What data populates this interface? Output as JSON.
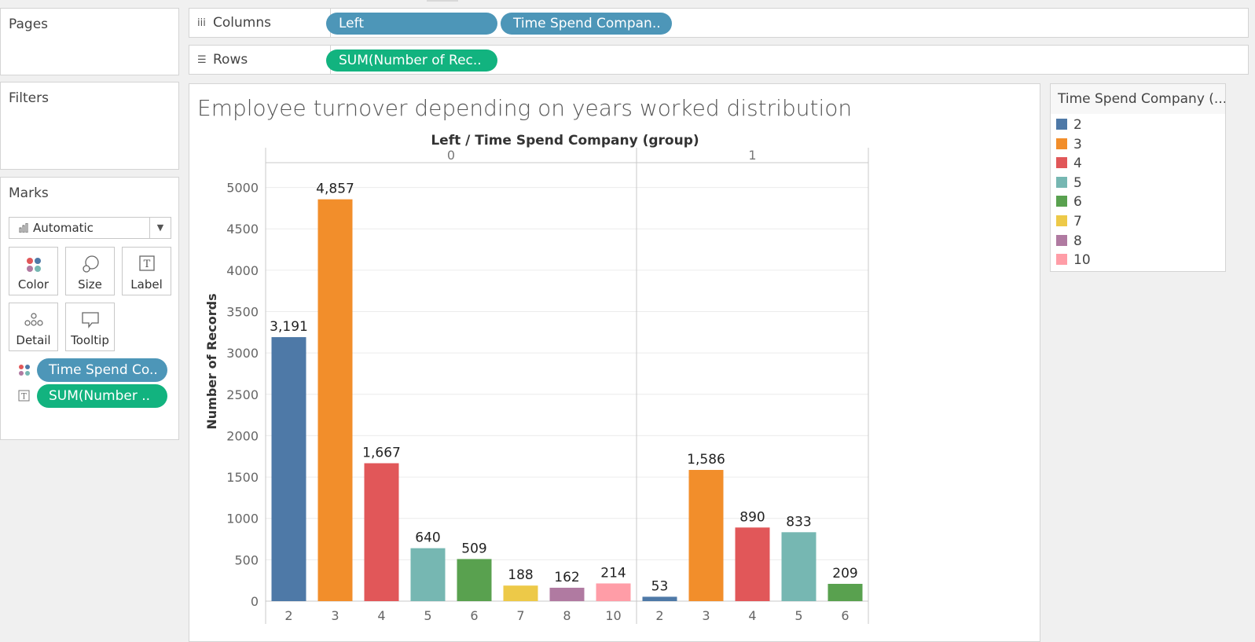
{
  "shelves": {
    "pages_label": "Pages",
    "filters_label": "Filters",
    "columns": {
      "label": "Columns",
      "pills": [
        "Left",
        "Time Spend Compan.."
      ]
    },
    "rows": {
      "label": "Rows",
      "pills": [
        "SUM(Number of Rec.."
      ]
    }
  },
  "marks": {
    "title": "Marks",
    "mark_type": "Automatic",
    "buttons": {
      "color": "Color",
      "size": "Size",
      "label": "Label",
      "detail": "Detail",
      "tooltip": "Tooltip"
    },
    "fields": [
      {
        "label": "Time Spend Co..",
        "icon": "color-marks-icon",
        "color": "#4d96b8"
      },
      {
        "label": "SUM(Number ..",
        "icon": "text-label-icon",
        "color": "#12b37f"
      }
    ]
  },
  "legend": {
    "title": "Time Spend Company (...",
    "items": [
      {
        "label": "2",
        "color": "#4e79a7"
      },
      {
        "label": "3",
        "color": "#f28e2b"
      },
      {
        "label": "4",
        "color": "#e15759"
      },
      {
        "label": "5",
        "color": "#76b7b2"
      },
      {
        "label": "6",
        "color": "#59a14f"
      },
      {
        "label": "7",
        "color": "#edc948"
      },
      {
        "label": "8",
        "color": "#b07aa1"
      },
      {
        "label": "10",
        "color": "#ff9da7"
      }
    ]
  },
  "chart_data": {
    "type": "bar",
    "title": "Employee turnover depending on years worked distribution",
    "header": "Left  /  Time Spend Company (group)",
    "ylabel": "Number of Records",
    "ylim": [
      0,
      5300
    ],
    "yticks": [
      0,
      500,
      1000,
      1500,
      2000,
      2500,
      3000,
      3500,
      4000,
      4500,
      5000
    ],
    "grid": true,
    "panes": [
      {
        "left": "0",
        "categories": [
          "2",
          "3",
          "4",
          "5",
          "6",
          "7",
          "8",
          "10"
        ],
        "values": [
          3191,
          4857,
          1667,
          640,
          509,
          188,
          162,
          214
        ],
        "labels": [
          "3,191",
          "4,857",
          "1,667",
          "640",
          "509",
          "188",
          "162",
          "214"
        ]
      },
      {
        "left": "1",
        "categories": [
          "2",
          "3",
          "4",
          "5",
          "6"
        ],
        "values": [
          53,
          1586,
          890,
          833,
          209
        ],
        "labels": [
          "53",
          "1,586",
          "890",
          "833",
          "209"
        ]
      }
    ]
  }
}
